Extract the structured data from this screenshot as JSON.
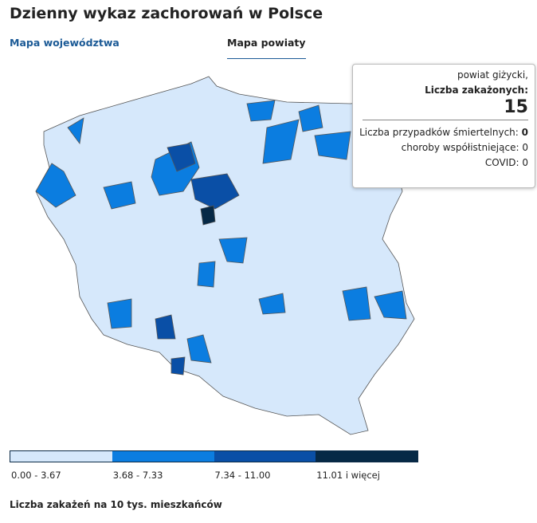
{
  "header": {
    "title": "Dzienny wykaz zachorowań w Polsce"
  },
  "tabs": [
    {
      "label": "Mapa województwa",
      "active": false
    },
    {
      "label": "Mapa powiaty",
      "active": true
    }
  ],
  "tooltip": {
    "region": "powiat giżycki,",
    "cases_label": "Liczba zakażonych:",
    "cases": 15,
    "rows": [
      {
        "label": "Liczba przypadków śmiertelnych:",
        "value": 0,
        "bold": true
      },
      {
        "label": "choroby współistniejące:",
        "value": 0,
        "bold": false
      },
      {
        "label": "COVID:",
        "value": 0,
        "bold": false
      }
    ]
  },
  "legend": {
    "items": [
      {
        "label": "0.00 - 3.67",
        "color": "#d6e8fb"
      },
      {
        "label": "3.68 - 7.33",
        "color": "#0b7de0"
      },
      {
        "label": "7.34 - 11.00",
        "color": "#0a4fa6"
      },
      {
        "label": "11.01 i więcej",
        "color": "#062946"
      }
    ],
    "caption": "Liczba zakażeń na 10 tys. mieszkańców"
  }
}
